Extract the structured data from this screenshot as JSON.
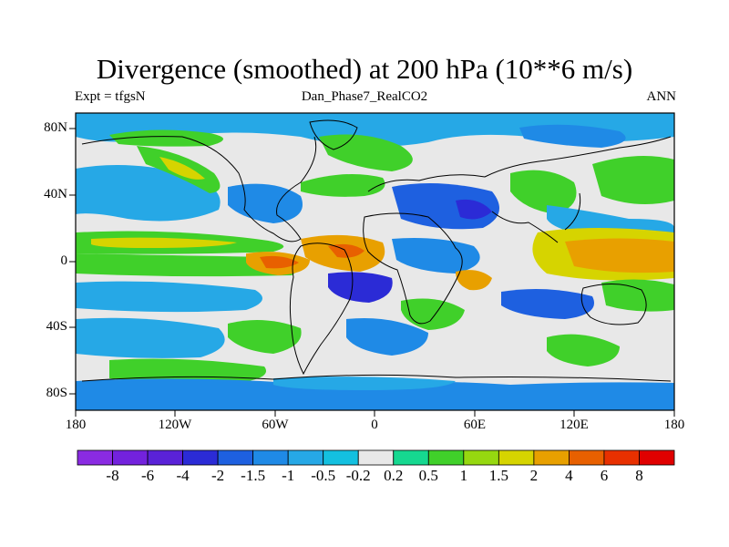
{
  "title": "Divergence (smoothed) at 200 hPa (10**6 m/s)",
  "subtitle_left": "Expt = tfgsN",
  "subtitle_center": "Dan_Phase7_RealCO2",
  "subtitle_right": "ANN",
  "lat_labels": [
    "80N",
    "40N",
    "0",
    "40S",
    "80S"
  ],
  "lon_labels": [
    "180",
    "120W",
    "60W",
    "0",
    "60E",
    "120E",
    "180"
  ],
  "colorbar": {
    "labels": [
      "-8",
      "-6",
      "-4",
      "-2",
      "-1.5",
      "-1",
      "-0.5",
      "-0.2",
      "0.2",
      "0.5",
      "1",
      "1.5",
      "2",
      "4",
      "6",
      "8"
    ],
    "colors": [
      "#8a2be2",
      "#7322dd",
      "#5a22d8",
      "#2b2bd6",
      "#1e60e0",
      "#1f8ae6",
      "#26a8e6",
      "#14c0e0",
      "#e8e8e8",
      "#16d890",
      "#40d02a",
      "#96d810",
      "#d6d400",
      "#e8a000",
      "#e86000",
      "#e83000",
      "#e00000"
    ]
  },
  "palette": {
    "land_outline": "#000000",
    "neutral": "#e8e8e8",
    "weak_neg": "#14c0e0",
    "mid_neg": "#26a8e6",
    "strong_neg": "#1e60e0",
    "very_neg": "#2b2bd6",
    "weak_pos": "#16d890",
    "mid_pos": "#40d02a",
    "pos": "#96d810",
    "strong_pos": "#d6d400",
    "very_pos": "#e8a000",
    "max_pos": "#e86000",
    "peak_pos": "#e83000"
  }
}
